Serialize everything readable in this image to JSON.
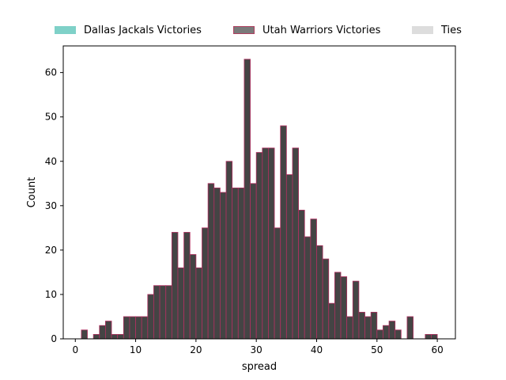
{
  "chart_data": {
    "type": "bar",
    "subtype": "histogram",
    "xlabel": "spread",
    "ylabel": "Count",
    "xlim": [
      -2,
      63
    ],
    "ylim": [
      0,
      66
    ],
    "xticks": [
      0,
      10,
      20,
      30,
      40,
      50,
      60
    ],
    "yticks": [
      0,
      10,
      20,
      30,
      40,
      50,
      60
    ],
    "bin_width": 1,
    "legend": {
      "placement": "top (above plot), horizontal",
      "entries": [
        {
          "label": "Dallas Jackals Victories",
          "color": "#7fd1c8"
        },
        {
          "label": "Utah Warriors Victories",
          "color": "#7a7a7a",
          "edge": "#b04060"
        },
        {
          "label": "Ties",
          "color": "#dddddd"
        }
      ]
    },
    "series": [
      {
        "name": "Utah Warriors Victories",
        "fill": "#444444",
        "edge": "#b03060",
        "bins": [
          [
            1,
            2,
            2
          ],
          [
            3,
            4,
            1
          ],
          [
            4,
            5,
            3
          ],
          [
            5,
            6,
            4
          ],
          [
            6,
            7,
            1
          ],
          [
            7,
            8,
            1
          ],
          [
            8,
            9,
            5
          ],
          [
            9,
            10,
            5
          ],
          [
            10,
            11,
            5
          ],
          [
            11,
            12,
            5
          ],
          [
            12,
            13,
            10
          ],
          [
            13,
            14,
            12
          ],
          [
            14,
            15,
            12
          ],
          [
            15,
            16,
            12
          ],
          [
            16,
            17,
            24
          ],
          [
            17,
            18,
            16
          ],
          [
            18,
            19,
            24
          ],
          [
            19,
            20,
            19
          ],
          [
            20,
            21,
            16
          ],
          [
            21,
            22,
            25
          ],
          [
            22,
            23,
            35
          ],
          [
            23,
            24,
            34
          ],
          [
            24,
            25,
            33
          ],
          [
            25,
            26,
            40
          ],
          [
            26,
            27,
            34
          ],
          [
            27,
            28,
            34
          ],
          [
            28,
            29,
            63
          ],
          [
            29,
            30,
            35
          ],
          [
            30,
            31,
            42
          ],
          [
            31,
            32,
            43
          ],
          [
            32,
            33,
            43
          ],
          [
            33,
            34,
            25
          ],
          [
            34,
            35,
            48
          ],
          [
            35,
            36,
            37
          ],
          [
            36,
            37,
            43
          ],
          [
            37,
            38,
            29
          ],
          [
            38,
            39,
            23
          ],
          [
            39,
            40,
            27
          ],
          [
            40,
            41,
            21
          ],
          [
            41,
            42,
            18
          ],
          [
            42,
            43,
            8
          ],
          [
            43,
            44,
            15
          ],
          [
            44,
            45,
            14
          ],
          [
            45,
            46,
            5
          ],
          [
            46,
            47,
            13
          ],
          [
            47,
            48,
            6
          ],
          [
            48,
            49,
            5
          ],
          [
            49,
            50,
            6
          ],
          [
            50,
            51,
            2
          ],
          [
            51,
            52,
            3
          ],
          [
            52,
            53,
            4
          ],
          [
            53,
            54,
            2
          ],
          [
            55,
            56,
            5
          ],
          [
            58,
            59,
            1
          ],
          [
            59,
            60,
            1
          ]
        ]
      }
    ]
  }
}
